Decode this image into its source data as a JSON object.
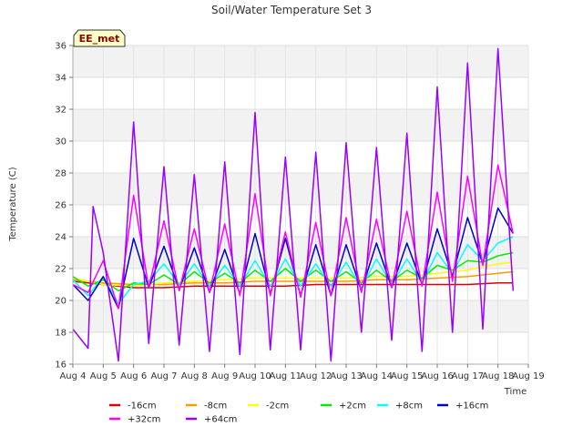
{
  "chart_data": {
    "type": "line",
    "title": "Soil/Water Temperature Set 3",
    "xlabel": "Time",
    "ylabel": "Temperature (C)",
    "site_label": "EE_met",
    "x_ticks": [
      "Aug 4",
      "Aug 5",
      "Aug 6",
      "Aug 7",
      "Aug 8",
      "Aug 9",
      "Aug 10",
      "Aug 11",
      "Aug 12",
      "Aug 13",
      "Aug 14",
      "Aug 15",
      "Aug 16",
      "Aug 17",
      "Aug 18",
      "Aug 19"
    ],
    "y_ticks": [
      16,
      18,
      20,
      22,
      24,
      26,
      28,
      30,
      32,
      34,
      36
    ],
    "xlim": [
      "Aug 4",
      "Aug 19"
    ],
    "ylim": [
      16,
      36
    ],
    "grid": true,
    "legend_position": "bottom",
    "series": [
      {
        "name": "-16cm",
        "color": "#dd0000",
        "x": [
          "Aug 4",
          "Aug 5",
          "Aug 6",
          "Aug 7",
          "Aug 8",
          "Aug 9",
          "Aug 10",
          "Aug 11",
          "Aug 12",
          "Aug 13",
          "Aug 14",
          "Aug 15",
          "Aug 16",
          "Aug 17",
          "Aug 18",
          "Aug 18 12:00"
        ],
        "y": [
          21.2,
          21.0,
          20.8,
          20.8,
          20.9,
          20.9,
          20.9,
          20.9,
          21.0,
          21.0,
          21.0,
          21.0,
          21.0,
          21.0,
          21.1,
          21.1
        ]
      },
      {
        "name": "-8cm",
        "color": "#ff9900",
        "x": [
          "Aug 4",
          "Aug 5",
          "Aug 6",
          "Aug 7",
          "Aug 8",
          "Aug 9",
          "Aug 10",
          "Aug 11",
          "Aug 12",
          "Aug 13",
          "Aug 14",
          "Aug 15",
          "Aug 16",
          "Aug 17",
          "Aug 18",
          "Aug 18 12:00"
        ],
        "y": [
          21.3,
          21.1,
          21.0,
          21.0,
          21.1,
          21.1,
          21.2,
          21.2,
          21.2,
          21.2,
          21.3,
          21.3,
          21.4,
          21.5,
          21.7,
          21.8
        ]
      },
      {
        "name": "-2cm",
        "color": "#ffff00",
        "x": [
          "Aug 4",
          "Aug 5",
          "Aug 6",
          "Aug 7",
          "Aug 8",
          "Aug 9",
          "Aug 10",
          "Aug 11",
          "Aug 12",
          "Aug 13",
          "Aug 14",
          "Aug 15",
          "Aug 16",
          "Aug 17",
          "Aug 18",
          "Aug 18 12:00"
        ],
        "y": [
          21.4,
          21.0,
          20.9,
          21.1,
          21.2,
          21.3,
          21.4,
          21.4,
          21.4,
          21.4,
          21.5,
          21.5,
          21.7,
          21.9,
          22.3,
          22.4
        ]
      },
      {
        "name": "+2cm",
        "color": "#00ee00",
        "x": [
          "Aug 4",
          "Aug 4 12:00",
          "Aug 5",
          "Aug 5 12:00",
          "Aug 6",
          "Aug 6 12:00",
          "Aug 7",
          "Aug 7 12:00",
          "Aug 8",
          "Aug 8 12:00",
          "Aug 9",
          "Aug 9 12:00",
          "Aug 10",
          "Aug 10 12:00",
          "Aug 11",
          "Aug 11 12:00",
          "Aug 12",
          "Aug 12 12:00",
          "Aug 13",
          "Aug 13 12:00",
          "Aug 14",
          "Aug 14 12:00",
          "Aug 15",
          "Aug 15 12:00",
          "Aug 16",
          "Aug 16 12:00",
          "Aug 17",
          "Aug 17 12:00",
          "Aug 18",
          "Aug 18 12:00"
        ],
        "y": [
          21.5,
          20.9,
          21.3,
          20.6,
          21.1,
          21.0,
          21.6,
          21.0,
          21.8,
          21.1,
          21.7,
          21.1,
          21.9,
          21.2,
          22.0,
          21.2,
          21.9,
          21.2,
          21.8,
          21.1,
          21.9,
          21.2,
          21.9,
          21.4,
          22.2,
          21.9,
          22.5,
          22.4,
          22.8,
          23.0
        ]
      },
      {
        "name": "+8cm",
        "color": "#00ffff",
        "x": [
          "Aug 4",
          "Aug 4 12:00",
          "Aug 5",
          "Aug 5 12:00",
          "Aug 6",
          "Aug 6 12:00",
          "Aug 7",
          "Aug 7 12:00",
          "Aug 8",
          "Aug 8 12:00",
          "Aug 9",
          "Aug 9 12:00",
          "Aug 10",
          "Aug 10 12:00",
          "Aug 11",
          "Aug 11 12:00",
          "Aug 12",
          "Aug 12 12:00",
          "Aug 13",
          "Aug 13 12:00",
          "Aug 14",
          "Aug 14 12:00",
          "Aug 15",
          "Aug 15 12:00",
          "Aug 16",
          "Aug 16 12:00",
          "Aug 17",
          "Aug 17 12:00",
          "Aug 18",
          "Aug 18 12:00"
        ],
        "y": [
          21.3,
          20.3,
          21.5,
          19.8,
          21.0,
          21.2,
          22.3,
          21.0,
          22.3,
          20.9,
          22.2,
          20.9,
          22.5,
          20.9,
          22.6,
          20.9,
          22.3,
          20.9,
          22.4,
          20.8,
          22.6,
          21.0,
          22.6,
          21.1,
          23.0,
          21.7,
          23.5,
          22.5,
          23.6,
          24.0
        ]
      },
      {
        "name": "+16cm",
        "color": "#0000cc",
        "x": [
          "Aug 4",
          "Aug 4 12:00",
          "Aug 5",
          "Aug 5 12:00",
          "Aug 6",
          "Aug 6 12:00",
          "Aug 7",
          "Aug 7 12:00",
          "Aug 8",
          "Aug 8 12:00",
          "Aug 9",
          "Aug 9 12:00",
          "Aug 10",
          "Aug 10 12:00",
          "Aug 11",
          "Aug 11 12:00",
          "Aug 12",
          "Aug 12 12:00",
          "Aug 13",
          "Aug 13 12:00",
          "Aug 14",
          "Aug 14 12:00",
          "Aug 15",
          "Aug 15 12:00",
          "Aug 16",
          "Aug 16 12:00",
          "Aug 17",
          "Aug 17 12:00",
          "Aug 18",
          "Aug 18 12:00"
        ],
        "y": [
          21.0,
          20.0,
          21.5,
          19.5,
          23.9,
          20.8,
          23.4,
          20.7,
          23.3,
          20.5,
          23.2,
          20.4,
          24.2,
          20.4,
          23.9,
          20.3,
          23.5,
          20.3,
          23.5,
          20.6,
          23.6,
          20.8,
          23.6,
          21.0,
          24.5,
          21.5,
          25.2,
          22.3,
          25.8,
          24.2
        ]
      },
      {
        "name": "+32cm",
        "color": "#ff00ff",
        "x": [
          "Aug 4",
          "Aug 4 12:00",
          "Aug 5",
          "Aug 5 12:00",
          "Aug 6",
          "Aug 6 12:00",
          "Aug 7",
          "Aug 7 12:00",
          "Aug 8",
          "Aug 8 12:00",
          "Aug 9",
          "Aug 9 12:00",
          "Aug 10",
          "Aug 10 12:00",
          "Aug 11",
          "Aug 11 12:00",
          "Aug 12",
          "Aug 12 12:00",
          "Aug 13",
          "Aug 13 12:00",
          "Aug 14",
          "Aug 14 12:00",
          "Aug 15",
          "Aug 15 12:00",
          "Aug 16",
          "Aug 16 12:00",
          "Aug 17",
          "Aug 17 12:00",
          "Aug 18",
          "Aug 18 12:00"
        ],
        "y": [
          21.0,
          20.5,
          22.5,
          19.5,
          26.6,
          20.8,
          25.0,
          20.6,
          24.5,
          20.5,
          24.8,
          20.3,
          26.7,
          20.3,
          24.3,
          20.2,
          24.9,
          20.3,
          25.2,
          20.5,
          25.1,
          20.8,
          25.6,
          20.9,
          26.8,
          21.2,
          27.8,
          22.2,
          28.5,
          24.2
        ]
      },
      {
        "name": "+64cm",
        "color": "#9900ff",
        "x": [
          "Aug 4",
          "Aug 4 12:00",
          "Aug 4 16:00",
          "Aug 5",
          "Aug 5 12:00",
          "Aug 6",
          "Aug 6 12:00",
          "Aug 7",
          "Aug 7 12:00",
          "Aug 8",
          "Aug 8 12:00",
          "Aug 9",
          "Aug 9 12:00",
          "Aug 10",
          "Aug 10 12:00",
          "Aug 11",
          "Aug 11 12:00",
          "Aug 12",
          "Aug 12 12:00",
          "Aug 13",
          "Aug 13 12:00",
          "Aug 14",
          "Aug 14 12:00",
          "Aug 15",
          "Aug 15 12:00",
          "Aug 16",
          "Aug 16 12:00",
          "Aug 17",
          "Aug 17 12:00",
          "Aug 18",
          "Aug 18 12:00"
        ],
        "y": [
          18.2,
          17.0,
          25.9,
          23.0,
          16.2,
          31.2,
          17.3,
          28.4,
          17.2,
          27.9,
          16.8,
          28.7,
          16.6,
          31.8,
          16.9,
          29.0,
          16.9,
          29.3,
          16.2,
          29.9,
          18.0,
          29.6,
          17.5,
          30.5,
          16.8,
          33.4,
          18.0,
          34.9,
          18.2,
          35.8,
          20.6
        ]
      }
    ]
  }
}
